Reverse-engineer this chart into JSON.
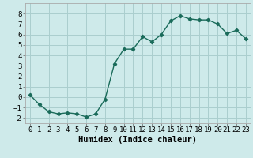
{
  "x": [
    0,
    1,
    2,
    3,
    4,
    5,
    6,
    7,
    8,
    9,
    10,
    11,
    12,
    13,
    14,
    15,
    16,
    17,
    18,
    19,
    20,
    21,
    22,
    23
  ],
  "y": [
    0.2,
    -0.7,
    -1.4,
    -1.6,
    -1.5,
    -1.6,
    -1.9,
    -1.6,
    -0.2,
    3.2,
    4.6,
    4.6,
    5.8,
    5.3,
    6.0,
    7.3,
    7.8,
    7.5,
    7.4,
    7.4,
    7.0,
    6.1,
    6.4,
    5.6
  ],
  "line_color": "#1a6b5a",
  "marker": "D",
  "marker_size": 2.2,
  "xlabel": "Humidex (Indice chaleur)",
  "xlim": [
    -0.5,
    23.5
  ],
  "ylim": [
    -2.5,
    9.0
  ],
  "yticks": [
    -2,
    -1,
    0,
    1,
    2,
    3,
    4,
    5,
    6,
    7,
    8
  ],
  "xticks": [
    0,
    1,
    2,
    3,
    4,
    5,
    6,
    7,
    8,
    9,
    10,
    11,
    12,
    13,
    14,
    15,
    16,
    17,
    18,
    19,
    20,
    21,
    22,
    23
  ],
  "background_color": "#ceeaea",
  "grid_color": "#aacece",
  "tick_label_fontsize": 6.5,
  "xlabel_fontsize": 7.5,
  "line_width": 1.0
}
